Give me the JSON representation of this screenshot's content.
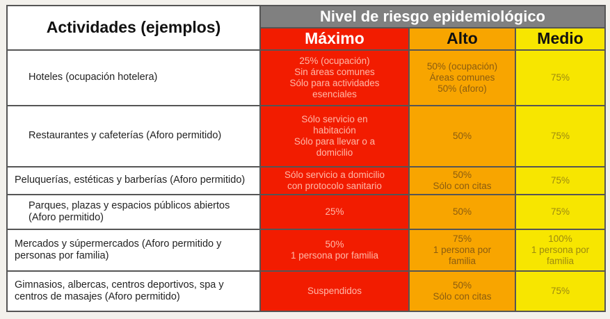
{
  "header": {
    "activities": "Actividades (ejemplos)",
    "risk_level": "Nivel de riesgo epidemiológico",
    "levels": [
      "Máximo",
      "Alto",
      "Medio"
    ]
  },
  "colors": {
    "maximo": "#f21c00",
    "alto": "#f8a500",
    "medio": "#f7e600",
    "header": "#808080"
  },
  "rows": [
    {
      "activity": "Hoteles (ocupación hotelera)",
      "maximo": [
        "25% (ocupación)",
        "Sin áreas comunes",
        "Sólo para actividades",
        "esenciales"
      ],
      "alto": [
        "50% (ocupación)",
        "Áreas comunes",
        "50% (aforo)"
      ],
      "medio": [
        "75%"
      ]
    },
    {
      "activity": "Restaurantes y cafeterías (Aforo permitido)",
      "maximo": [
        "Sólo servicio en",
        "habitación",
        "Sólo para llevar o a",
        "domicilio"
      ],
      "alto": [
        "50%"
      ],
      "medio": [
        "75%"
      ]
    },
    {
      "activity": "Peluquerías, estéticas y barberías (Aforo permitido)",
      "maximo": [
        "Sólo servicio a domicilio",
        "con protocolo sanitario"
      ],
      "alto": [
        "50%",
        "Sólo con citas"
      ],
      "medio": [
        "75%"
      ]
    },
    {
      "activity": "Parques, plazas y espacios públicos abiertos (Aforo permitido)",
      "maximo": [
        "25%"
      ],
      "alto": [
        "50%"
      ],
      "medio": [
        "75%"
      ]
    },
    {
      "activity": "Mercados y súpermercados (Aforo permitido y personas por familia)",
      "maximo": [
        "50%",
        "1 persona por familia"
      ],
      "alto": [
        "75%",
        "1 persona por",
        "familia"
      ],
      "medio": [
        "100%",
        "1 persona por",
        "familia"
      ]
    },
    {
      "activity": "Gimnasios, albercas, centros deportivos, spa y centros de masajes (Aforo permitido)",
      "maximo": [
        "Suspendidos"
      ],
      "alto": [
        "50%",
        "Sólo con citas"
      ],
      "medio": [
        "75%"
      ]
    }
  ]
}
